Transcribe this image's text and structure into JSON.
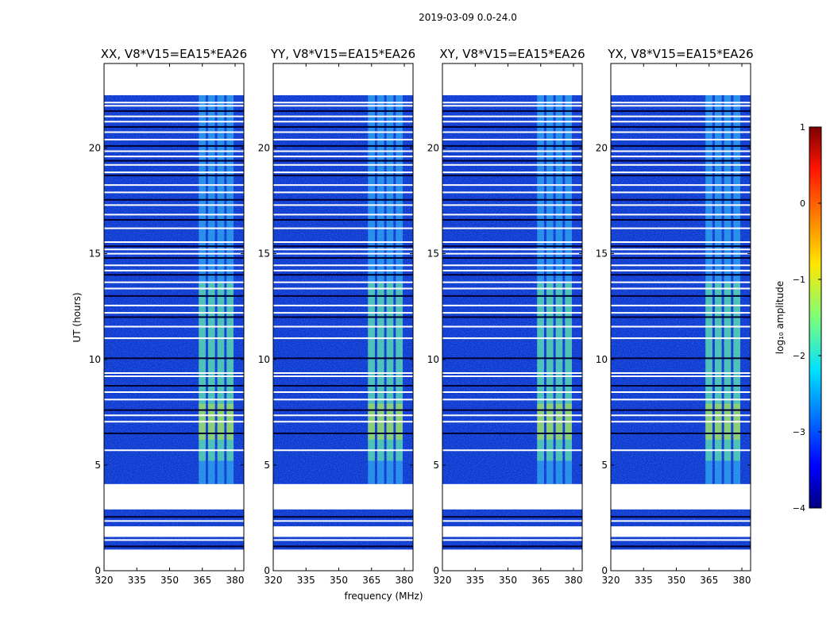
{
  "chart_data": {
    "type": "heatmap",
    "suptitle": "2019-03-09 0.0-24.0",
    "xlabel": "frequency (MHz)",
    "ylabel": "UT (hours)",
    "xlim": [
      320,
      384
    ],
    "ylim": [
      0,
      24
    ],
    "xticks": [
      320,
      335,
      350,
      365,
      380
    ],
    "yticks": [
      0,
      5,
      10,
      15,
      20
    ],
    "panels": [
      {
        "title": "XX, V8*V15=EA15*EA26"
      },
      {
        "title": "YY, V8*V15=EA15*EA26"
      },
      {
        "title": "XY, V8*V15=EA15*EA26"
      },
      {
        "title": "YX, V8*V15=EA15*EA26"
      }
    ],
    "data_extent_ut": [
      0.9,
      22.5
    ],
    "empty_ut_ranges": [
      [
        0,
        1.0
      ],
      [
        1.6,
        2.1
      ],
      [
        2.9,
        4.1
      ],
      [
        22.5,
        24
      ]
    ],
    "flagged_ut_hours": [
      1.15,
      1.45,
      2.35,
      2.55,
      3.1,
      5.7,
      6.5,
      7.05,
      7.35,
      7.6,
      8.1,
      8.45,
      8.75,
      9.2,
      9.35,
      10.05,
      11.0,
      11.55,
      12.0,
      12.2,
      12.55,
      13.0,
      13.35,
      13.65,
      14.0,
      14.2,
      14.45,
      14.8,
      15.0,
      15.2,
      15.35,
      15.55,
      16.2,
      16.6,
      16.85,
      17.3,
      17.55,
      17.9,
      18.25,
      18.7,
      18.85,
      19.2,
      19.4,
      19.6,
      19.85,
      20.1,
      20.4,
      20.75,
      21.0,
      21.25,
      21.5,
      21.75,
      22.0,
      22.15
    ],
    "rfi_band_mhz": [
      363,
      380
    ],
    "colorbar": {
      "label": "log₁₀ amplitude",
      "range": [
        -4,
        1
      ],
      "ticks": [
        1,
        0,
        -1,
        -2,
        -3,
        -4
      ],
      "colormap": "jet"
    }
  },
  "colors": {
    "background_noise": "#1030d0",
    "flag_line": "#ffffff"
  }
}
